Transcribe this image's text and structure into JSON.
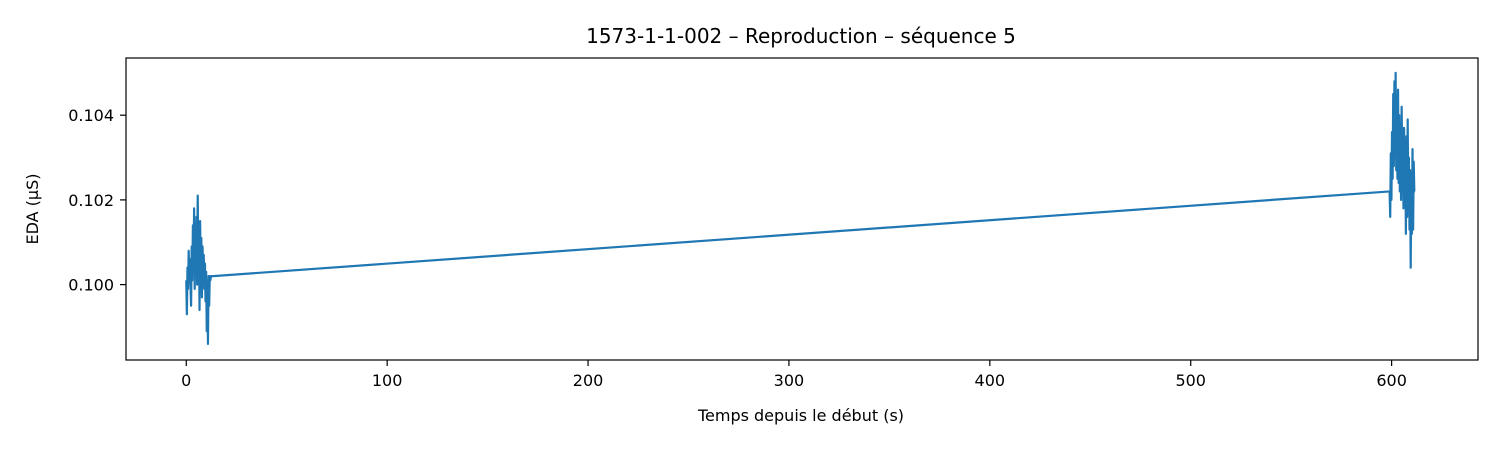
{
  "chart_data": {
    "type": "line",
    "title": "1573-1-1-002 – Reproduction – séquence 5",
    "xlabel": "Temps depuis le début (s)",
    "ylabel": "EDA (µS)",
    "xlim": [
      -30,
      643
    ],
    "ylim": [
      0.09822,
      0.10535
    ],
    "xticks": [
      0,
      100,
      200,
      300,
      400,
      500,
      600
    ],
    "yticks": [
      0.1,
      0.102,
      0.104
    ],
    "ytick_labels": [
      "0.100",
      "0.102",
      "0.104"
    ],
    "grid": false,
    "line_color": "#1f77b4",
    "series": [
      {
        "x": [
          0.0,
          0.3,
          0.6,
          0.9,
          1.2,
          1.5,
          1.8,
          2.1,
          2.4,
          2.7,
          3.0,
          3.3,
          3.6,
          3.9,
          4.2,
          4.5,
          4.8,
          5.1,
          5.4,
          5.7,
          6.0,
          6.3,
          6.6,
          6.9,
          7.2,
          7.5,
          7.8,
          8.1,
          8.4,
          8.7,
          9.0,
          9.3,
          9.6,
          9.9,
          10.2,
          10.5,
          10.8,
          11.1,
          11.4,
          11.7,
          12.0,
          12.3,
          12.6,
          12.9,
          13.2,
          13.5,
          599.0,
          599.3,
          599.6,
          599.9,
          600.2,
          600.5,
          600.8,
          601.1,
          601.4,
          601.7,
          602.0,
          602.3,
          602.6,
          602.9,
          603.2,
          603.5,
          603.8,
          604.1,
          604.4,
          604.7,
          605.0,
          605.3,
          605.6,
          605.9,
          606.2,
          606.5,
          606.8,
          607.1,
          607.4,
          607.7,
          608.0,
          608.3,
          608.6,
          608.9,
          609.2,
          609.5,
          609.8,
          610.1,
          610.4,
          610.7,
          611.0,
          611.3,
          611.6
        ],
        "y": [
          0.1001,
          0.0993,
          0.1004,
          0.0999,
          0.1008,
          0.1002,
          0.1006,
          0.1,
          0.0995,
          0.1009,
          0.1001,
          0.1014,
          0.1003,
          0.1018,
          0.0999,
          0.1012,
          0.1004,
          0.1016,
          0.1,
          0.1021,
          0.1005,
          0.1013,
          0.0994,
          0.1015,
          0.1002,
          0.1011,
          0.0997,
          0.1009,
          0.1003,
          0.1007,
          0.0999,
          0.1005,
          0.0996,
          0.1003,
          0.0989,
          0.1001,
          0.0986,
          0.1002,
          0.0995,
          0.1002,
          0.1001,
          0.1002,
          0.1002,
          0.1002,
          0.1002,
          0.1002,
          0.1022,
          0.1016,
          0.1031,
          0.102,
          0.1036,
          0.1025,
          0.1045,
          0.1028,
          0.1048,
          0.103,
          0.105,
          0.1027,
          0.1042,
          0.1025,
          0.1046,
          0.1024,
          0.104,
          0.1022,
          0.1038,
          0.102,
          0.1042,
          0.1026,
          0.1034,
          0.1018,
          0.1037,
          0.1028,
          0.1032,
          0.1012,
          0.1035,
          0.1016,
          0.1039,
          0.1019,
          0.103,
          0.1013,
          0.1027,
          0.1004,
          0.1025,
          0.1012,
          0.1032,
          0.1013,
          0.1029,
          0.1022,
          0.1022
        ]
      }
    ]
  }
}
